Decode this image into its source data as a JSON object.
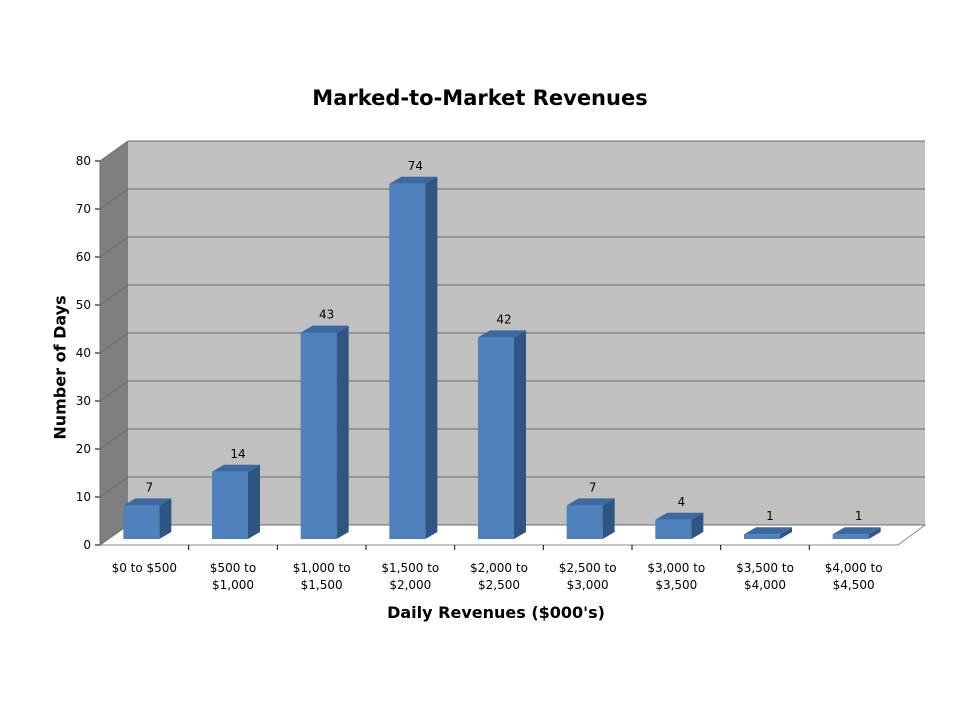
{
  "chart_data": {
    "type": "bar",
    "title": "Marked-to-Market Revenues",
    "xlabel": "Daily Revenues ($000's)",
    "ylabel": "Number of Days",
    "categories": [
      [
        "$0 to $500"
      ],
      [
        "$500 to",
        "$1,000"
      ],
      [
        "$1,000 to",
        "$1,500"
      ],
      [
        "$1,500 to",
        "$2,000"
      ],
      [
        "$2,000 to",
        "$2,500"
      ],
      [
        "$2,500 to",
        "$3,000"
      ],
      [
        "$3,000 to",
        "$3,500"
      ],
      [
        "$3,500 to",
        "$4,000"
      ],
      [
        "$4,000 to",
        "$4,500"
      ]
    ],
    "values": [
      7,
      14,
      43,
      74,
      42,
      7,
      4,
      1,
      1
    ],
    "data_labels": [
      "7",
      "14",
      "43",
      "74",
      "42",
      "7",
      "4",
      "1",
      "1"
    ],
    "ylim": [
      0,
      80
    ],
    "yticks": [
      "0",
      "10",
      "20",
      "30",
      "40",
      "50",
      "60",
      "70",
      "80"
    ],
    "grid": true,
    "legend": "none",
    "style": "3d-column",
    "colors": {
      "bar_front": "#4f81bd",
      "bar_side": "#2f5582",
      "bar_top": "#3b6aa3",
      "back_wall": "#c0c0c0",
      "side_wall": "#7f7f7f",
      "floor": "#ffffff",
      "gridline": "#6e6e6e"
    }
  }
}
